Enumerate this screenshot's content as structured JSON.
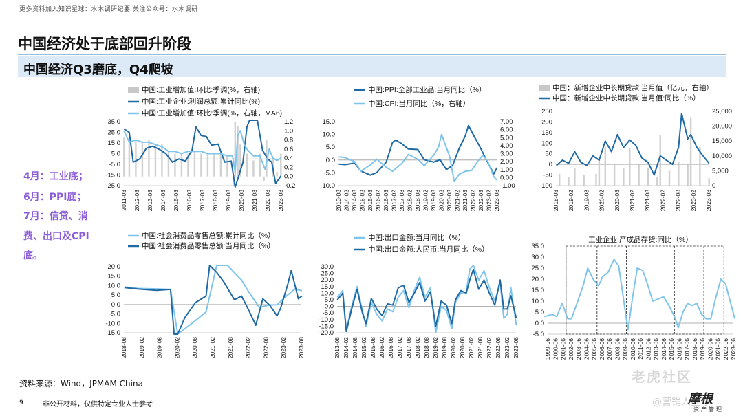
{
  "header": {
    "top_note": "更多资料加入知识星球：水木调研纪要   关注公众号：水木调研",
    "title": "中国经济处于底部回升阶段",
    "subtitle": "中国经济Q3磨底，Q4爬坡"
  },
  "side_notes": [
    "4月：工业底；",
    "6月：PPI底；",
    "7月：信贷、消",
    "费、出口及CPI",
    "底。"
  ],
  "footer": {
    "source": "资料来源：Wind，JPMAM China",
    "page_number": "9",
    "disclaimer": "非公开材料，仅供特定专业人士参考",
    "watermark_1": "老虎社区",
    "watermark_2": "@营销人星球",
    "logo": "摩根",
    "logo_sub": "资产管理"
  },
  "colors": {
    "dark_blue": "#1f6aa5",
    "light_blue": "#7fc4ea",
    "gray_bar": "#c8c8c8",
    "accent_purple": "#8a5cd6"
  },
  "chart_data": [
    {
      "type": "bar+line",
      "legend": [
        "中国:工业增加值:环比:季调(%，右轴)",
        "中国:工业企业:利润总额:累计同比(%)",
        "中国:工业增加值:环比:季调(%，右轴，MA6)"
      ],
      "x_ticks": [
        "2011-08",
        "2012-08",
        "2013-08",
        "2014-08",
        "2015-08",
        "2016-08",
        "2017-08",
        "2018-08",
        "2019-08",
        "2020-08",
        "2021-08",
        "2022-08",
        "2023-08"
      ],
      "ylim": [
        -25,
        35
      ],
      "y_ticks": [
        "35.0",
        "25.0",
        "15.0",
        "5.0",
        "-5.0",
        "-15.0",
        "-25.0"
      ],
      "y2lim": [
        -0.2,
        1.2
      ],
      "y2_ticks": [
        "1.2",
        "1.0",
        "0.8",
        "0.6",
        "0.4",
        "0.2",
        "0.0",
        "-0.2"
      ],
      "series": [
        {
          "name": "中国:工业增加值:环比:季调(%，右轴)",
          "axis": "right",
          "kind": "bar",
          "x": [
            2011.6,
            2012.0,
            2012.5,
            2013.0,
            2013.5,
            2014.0,
            2014.5,
            2015.0,
            2015.5,
            2016.0,
            2016.5,
            2017.0,
            2017.5,
            2018.0,
            2018.5,
            2019.0,
            2019.5,
            2020.0,
            2020.1,
            2020.3,
            2020.5,
            2021.0,
            2021.5,
            2022.0,
            2022.3,
            2022.5,
            2023.0,
            2023.3,
            2023.6
          ],
          "values": [
            0.85,
            0.75,
            0.8,
            0.75,
            0.8,
            0.7,
            0.7,
            0.55,
            0.5,
            0.5,
            0.5,
            0.55,
            0.5,
            0.5,
            0.5,
            0.5,
            0.45,
            -0.2,
            1.2,
            1.1,
            0.7,
            0.5,
            0.35,
            0.5,
            -0.1,
            0.8,
            0.4,
            0.1,
            0.5
          ]
        },
        {
          "name": "中国:工业企业:利润总额:累计同比(%)",
          "axis": "left",
          "kind": "line",
          "x": [
            2011.6,
            2012.0,
            2012.3,
            2012.8,
            2013.3,
            2013.8,
            2014.3,
            2014.8,
            2015.3,
            2015.8,
            2016.3,
            2016.8,
            2017.1,
            2017.5,
            2017.9,
            2018.3,
            2018.8,
            2019.3,
            2019.8,
            2020.1,
            2020.3,
            2020.7,
            2021.0,
            2021.2,
            2021.5,
            2021.8,
            2022.2,
            2022.6,
            2022.9,
            2023.2,
            2023.6
          ],
          "values": [
            28,
            25,
            -3,
            0,
            10,
            12,
            9,
            5,
            -3,
            0,
            -2,
            8,
            30,
            22,
            21,
            13,
            14,
            -3,
            -2,
            -30,
            -19,
            -3,
            30,
            80,
            55,
            38,
            8,
            0,
            -3,
            -23,
            -16
          ]
        },
        {
          "name": "中国:工业增加值:环比:季调(%，右轴，MA6)",
          "axis": "right",
          "kind": "line",
          "x": [
            2011.6,
            2012.0,
            2012.5,
            2013.0,
            2013.5,
            2014.0,
            2014.5,
            2015.0,
            2015.5,
            2016.0,
            2016.5,
            2017.0,
            2017.5,
            2018.0,
            2018.5,
            2019.0,
            2019.5,
            2019.9,
            2020.1,
            2020.3,
            2020.5,
            2020.8,
            2021.0,
            2021.5,
            2022.0,
            2022.4,
            2022.7,
            2023.0,
            2023.3,
            2023.6
          ],
          "values": [
            1.0,
            0.75,
            0.8,
            0.75,
            0.75,
            0.7,
            0.65,
            0.55,
            0.55,
            0.5,
            0.55,
            0.55,
            0.55,
            0.5,
            0.5,
            0.5,
            0.45,
            0.45,
            0.1,
            0.9,
            1.0,
            0.7,
            0.6,
            0.45,
            0.45,
            0.15,
            0.6,
            0.4,
            0.35,
            0.4
          ]
        }
      ]
    },
    {
      "type": "line",
      "legend": [
        "中国:PPI:全部工业品:当月同比（%）",
        "中国:CPI:当月同比（%，右轴）"
      ],
      "x_ticks": [
        "2013-08",
        "2014-02",
        "2014-08",
        "2015-02",
        "2015-08",
        "2016-02",
        "2016-08",
        "2017-02",
        "2017-08",
        "2018-02",
        "2018-08",
        "2019-02",
        "2019-08",
        "2020-02",
        "2020-08",
        "2021-02",
        "2021-08",
        "2022-02",
        "2022-08",
        "2023-02",
        "2023-08"
      ],
      "ylim": [
        -10,
        15
      ],
      "y_ticks": [
        "15.0",
        "10.0",
        "5.0",
        "0.0",
        "-5.0",
        "-10.0"
      ],
      "y2lim": [
        -1,
        7
      ],
      "y2_ticks": [
        "7.00",
        "6.00",
        "5.00",
        "4.00",
        "3.00",
        "2.00",
        "1.00",
        "0.00",
        "-1.00"
      ],
      "series": [
        {
          "name": "中国:PPI:全部工业品:当月同比（%）",
          "axis": "left",
          "x": [
            2013.6,
            2014.0,
            2014.6,
            2015.0,
            2015.6,
            2016.0,
            2016.6,
            2017.0,
            2017.2,
            2017.6,
            2018.0,
            2018.6,
            2019.0,
            2019.6,
            2020.0,
            2020.4,
            2020.8,
            2021.2,
            2021.6,
            2021.8,
            2022.2,
            2022.6,
            2023.0,
            2023.4,
            2023.6
          ],
          "values": [
            -1.6,
            -1.8,
            -1.2,
            -4.3,
            -5.9,
            -4.9,
            -0.8,
            6.9,
            7.8,
            6.3,
            4.3,
            4.1,
            0.1,
            -0.8,
            0.1,
            -3.7,
            -2.1,
            4.4,
            9.5,
            13.5,
            8.8,
            4.2,
            -0.8,
            -5.4,
            -3.0
          ]
        },
        {
          "name": "中国:CPI:当月同比（%，右轴）",
          "axis": "right",
          "x": [
            2013.6,
            2014.0,
            2014.6,
            2015.0,
            2015.6,
            2016.0,
            2016.6,
            2017.0,
            2017.6,
            2018.0,
            2018.6,
            2019.0,
            2019.6,
            2019.9,
            2020.1,
            2020.6,
            2020.9,
            2021.2,
            2021.6,
            2022.0,
            2022.4,
            2022.7,
            2023.0,
            2023.4,
            2023.6
          ],
          "values": [
            2.6,
            2.5,
            2.0,
            0.8,
            1.6,
            2.3,
            1.3,
            0.8,
            1.8,
            2.9,
            2.3,
            1.5,
            2.8,
            3.8,
            5.4,
            2.7,
            -0.5,
            0.4,
            0.8,
            0.9,
            2.1,
            2.8,
            2.1,
            0.1,
            -0.3
          ]
        }
      ]
    },
    {
      "type": "bar+line",
      "legend": [
        "中国：新增企业中长期贷款:当月值（亿元，右轴）",
        "中国：新增企业中长期贷款:当月值:同比（%）"
      ],
      "x_ticks": [
        "2018-08",
        "2019-02",
        "2019-08",
        "2020-02",
        "2020-08",
        "2021-02",
        "2021-08",
        "2022-02",
        "2022-08",
        "2023-02",
        "2023-08"
      ],
      "ylim": [
        -100,
        250
      ],
      "y_ticks": [
        "250",
        "200",
        "150",
        "100",
        "50",
        "0",
        "-50",
        "-100"
      ],
      "y2lim": [
        0,
        25000
      ],
      "y2_ticks": [
        "25,000",
        "20,000",
        "15,000",
        "10,000",
        "5,000",
        "0"
      ],
      "series": [
        {
          "name": "中国：新增企业中长期贷款:当月值（亿元，右轴）",
          "axis": "right",
          "kind": "bar",
          "x": [
            2018.7,
            2019.0,
            2019.2,
            2019.5,
            2019.9,
            2020.0,
            2020.2,
            2020.5,
            2020.8,
            2021.0,
            2021.3,
            2021.6,
            2021.9,
            2022.0,
            2022.3,
            2022.6,
            2022.9,
            2023.0,
            2023.3,
            2023.6
          ],
          "values": [
            4000,
            3000,
            6000,
            3500,
            4000,
            9000,
            13000,
            7000,
            6000,
            12500,
            7000,
            6000,
            3000,
            17000,
            5000,
            8000,
            7000,
            23000,
            13000,
            2500
          ]
        },
        {
          "name": "中国：新增企业中长期贷款:当月值:同比（%）",
          "axis": "left",
          "kind": "line",
          "x": [
            2018.6,
            2018.8,
            2019.0,
            2019.2,
            2019.4,
            2019.6,
            2019.8,
            2020.0,
            2020.2,
            2020.4,
            2020.6,
            2020.8,
            2021.0,
            2021.2,
            2021.4,
            2021.6,
            2021.8,
            2022.0,
            2022.2,
            2022.4,
            2022.6,
            2022.7,
            2022.9,
            2023.0,
            2023.2,
            2023.4,
            2023.6
          ],
          "values": [
            -5,
            20,
            5,
            60,
            10,
            -5,
            40,
            20,
            110,
            60,
            140,
            80,
            115,
            90,
            30,
            10,
            -50,
            40,
            20,
            0,
            80,
            240,
            120,
            140,
            80,
            40,
            5
          ]
        }
      ]
    },
    {
      "type": "line",
      "legend": [
        "中国:社会消费品零售总额:累计同比（%）",
        "中国:社会消费品零售总额:当月同比（%）"
      ],
      "x_ticks": [
        "2018-08",
        "2019-02",
        "2019-08",
        "2020-02",
        "2020-08",
        "2021-02",
        "2021-08",
        "2022-02",
        "2022-08",
        "2023-02",
        "2023-08"
      ],
      "ylim": [
        -15,
        20
      ],
      "y_ticks": [
        "20.0",
        "15.0",
        "10.0",
        "5.0",
        "0.0",
        "-5.0",
        "-10.0",
        "-15.0"
      ],
      "series": [
        {
          "name": "中国:社会消费品零售总额:累计同比（%）",
          "axis": "left",
          "x": [
            2018.6,
            2019.0,
            2019.5,
            2019.9,
            2020.1,
            2020.5,
            2020.9,
            2021.2,
            2021.5,
            2021.9,
            2022.1,
            2022.4,
            2022.7,
            2022.9,
            2023.1,
            2023.4,
            2023.6
          ],
          "values": [
            9.3,
            8.5,
            8.3,
            8.0,
            -20.5,
            -10,
            -4,
            34,
            23,
            13,
            6.7,
            -1.5,
            -0.2,
            -0.2,
            3.5,
            8.2,
            7.3
          ]
        },
        {
          "name": "中国:社会消费品零售总额:当月同比（%）",
          "axis": "left",
          "x": [
            2018.6,
            2019.0,
            2019.5,
            2019.9,
            2020.0,
            2020.1,
            2020.3,
            2020.6,
            2020.9,
            2021.0,
            2021.2,
            2021.4,
            2021.7,
            2021.9,
            2022.1,
            2022.3,
            2022.5,
            2022.7,
            2022.9,
            2023.0,
            2023.2,
            2023.3,
            2023.5,
            2023.6
          ],
          "values": [
            9,
            8.2,
            7.5,
            8,
            -20.5,
            -16,
            -7,
            1,
            4.5,
            34,
            17,
            12,
            2.5,
            4.5,
            -3,
            -11,
            3,
            -0.5,
            -6,
            -2,
            10.6,
            18,
            3,
            4.5
          ]
        }
      ]
    },
    {
      "type": "line",
      "legend": [
        "中国:出口金额:当月同比（%）",
        "中国:出口金额:人民币:当月同比（%）"
      ],
      "x_ticks": [
        "2013-08",
        "2014-02",
        "2014-08",
        "2015-02",
        "2015-08",
        "2016-02",
        "2016-08",
        "2017-02",
        "2017-08",
        "2018-02",
        "2018-08",
        "2019-02",
        "2019-08",
        "2020-02",
        "2020-08",
        "2021-02",
        "2021-08",
        "2022-02",
        "2022-08",
        "2023-02",
        "2023-08"
      ],
      "ylim": [
        -20,
        30
      ],
      "y_ticks": [
        "30.0",
        "25.0",
        "20.0",
        "15.0",
        "10.0",
        "5.0",
        "0.0",
        "-5.0",
        "-10.0",
        "-15.0",
        "-20.0"
      ],
      "series": [
        {
          "name": "中国:出口金额:当月同比（%）",
          "axis": "left",
          "x": [
            2013.6,
            2013.9,
            2014.1,
            2014.4,
            2014.7,
            2015.0,
            2015.2,
            2015.5,
            2015.8,
            2016.1,
            2016.4,
            2016.7,
            2017.0,
            2017.3,
            2017.6,
            2017.9,
            2018.2,
            2018.5,
            2018.8,
            2019.1,
            2019.4,
            2019.7,
            2020.0,
            2020.2,
            2020.5,
            2020.8,
            2021.0,
            2021.2,
            2021.5,
            2021.8,
            2022.1,
            2022.4,
            2022.7,
            2022.9,
            2023.1,
            2023.3,
            2023.6
          ],
          "values": [
            7,
            12,
            -18,
            0,
            15,
            -3,
            -15,
            3,
            -6,
            -11,
            -2,
            -4,
            7,
            12,
            -1,
            12,
            22,
            7,
            14,
            -20,
            0,
            -3,
            -17,
            3,
            10,
            11,
            28,
            32,
            20,
            27,
            14,
            4,
            18,
            -9,
            -6,
            14,
            -14
          ]
        },
        {
          "name": "中国:出口金额:人民币:当月同比（%）",
          "axis": "left",
          "x": [
            2013.6,
            2013.9,
            2014.1,
            2014.4,
            2014.7,
            2015.0,
            2015.2,
            2015.5,
            2015.8,
            2016.1,
            2016.4,
            2016.7,
            2017.0,
            2017.3,
            2017.6,
            2017.9,
            2018.2,
            2018.5,
            2018.8,
            2019.1,
            2019.4,
            2019.7,
            2020.0,
            2020.2,
            2020.5,
            2020.8,
            2021.0,
            2021.2,
            2021.5,
            2021.8,
            2022.1,
            2022.4,
            2022.7,
            2022.9,
            2023.1,
            2023.3,
            2023.6
          ],
          "values": [
            5,
            10,
            -19,
            -2,
            13,
            -5,
            -13,
            6,
            -2,
            -7,
            2,
            1,
            14,
            16,
            3,
            10,
            18,
            4,
            11,
            -15,
            4,
            1,
            -13,
            5,
            12,
            10,
            20,
            28,
            13,
            20,
            10,
            1,
            20,
            -2,
            -2,
            8,
            -9
          ]
        }
      ]
    },
    {
      "type": "line",
      "title": "工业企业:产成品存货:同比（%）",
      "x_ticks": [
        "1999-06",
        "2000-06",
        "2001-06",
        "2002-06",
        "2003-06",
        "2004-06",
        "2005-06",
        "2006-06",
        "2007-06",
        "2008-06",
        "2009-06",
        "2010-06",
        "2011-06",
        "2012-06",
        "2013-06",
        "2014-06",
        "2015-06",
        "2016-06",
        "2017-06",
        "2018-06",
        "2019-06",
        "2020-06",
        "2021-06",
        "2022-06",
        "2023-06"
      ],
      "ylim": [
        -5,
        35
      ],
      "y_ticks": [
        "35.0",
        "30.0",
        "25.0",
        "20.0",
        "15.0",
        "10.0",
        "5.0",
        "0.0",
        "-5.0"
      ],
      "series": [
        {
          "name": "",
          "axis": "left",
          "x": [
            1999.0,
            2000.0,
            2000.6,
            2001.3,
            2002.0,
            2002.5,
            2003.3,
            2004.0,
            2004.6,
            2005.3,
            2006.0,
            2006.5,
            2007.2,
            2008.0,
            2008.6,
            2009.3,
            2009.8,
            2010.4,
            2011.0,
            2011.7,
            2012.3,
            2013.0,
            2013.7,
            2014.4,
            2015.1,
            2015.8,
            2016.3,
            2016.9,
            2017.5,
            2018.1,
            2018.7,
            2019.3,
            2019.9,
            2020.5,
            2021.1,
            2021.8,
            2022.4,
            2023.0,
            2023.6
          ],
          "values": [
            3,
            4,
            3,
            9,
            2,
            2,
            10,
            17,
            25,
            20,
            17,
            21,
            23,
            29,
            26,
            9,
            -3,
            12,
            25,
            24,
            18,
            10,
            11,
            12,
            8,
            3,
            -2,
            5,
            9,
            8,
            9,
            4,
            2,
            2,
            11,
            20,
            18,
            10,
            2
          ]
        }
      ],
      "period_markers": [
        2001.8,
        2005.8,
        2009.6,
        2015.8,
        2019.6,
        2022.2
      ]
    }
  ]
}
